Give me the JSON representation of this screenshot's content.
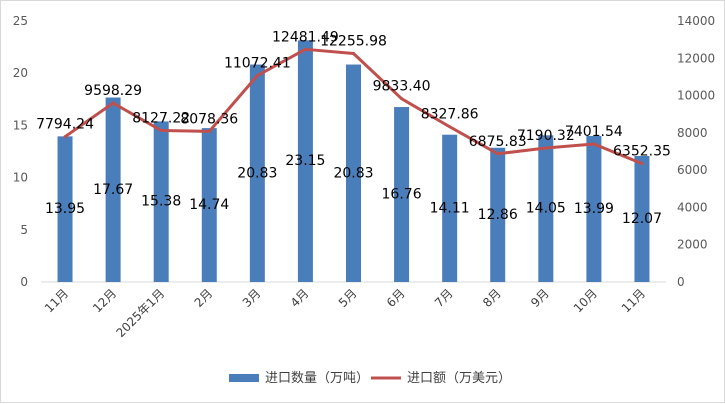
{
  "chart_data": {
    "type": "bar",
    "categories": [
      "11月",
      "12月",
      "2025年1月",
      "2月",
      "3月",
      "4月",
      "5月",
      "6月",
      "7月",
      "8月",
      "9月",
      "10月",
      "11月"
    ],
    "series": [
      {
        "name": "进口数量（万吨）",
        "type": "bar",
        "axis": "left",
        "color": "#4a7ebb",
        "values": [
          13.95,
          17.67,
          15.38,
          14.74,
          20.83,
          23.15,
          20.83,
          16.76,
          14.11,
          12.86,
          14.05,
          13.99,
          12.07
        ],
        "labels": [
          "13.95",
          "17.67",
          "15.38",
          "14.74",
          "20.83",
          "23.15",
          "20.83",
          "16.76",
          "14.11",
          "12.86",
          "14.05",
          "13.99",
          "12.07"
        ]
      },
      {
        "name": "进口额（万美元）",
        "type": "line",
        "axis": "right",
        "color": "#c0504d",
        "values": [
          7794.24,
          9598.29,
          8127.22,
          8078.36,
          11072.41,
          12481.49,
          12255.98,
          9833.4,
          8327.86,
          6875.83,
          7190.32,
          7401.54,
          6352.35
        ],
        "labels": [
          "7794.24",
          "9598.29",
          "8127.22",
          "8078.36",
          "11072.41",
          "12481.49",
          "12255.98",
          "9833.40",
          "8327.86",
          "6875.83",
          "7190.32",
          "7401.54",
          "6352.35"
        ]
      }
    ],
    "y_left": {
      "ylim": [
        0,
        25
      ],
      "ticks": [
        "0",
        "5",
        "10",
        "15",
        "20",
        "25"
      ]
    },
    "y_right": {
      "ylim": [
        0,
        14000
      ],
      "ticks": [
        "0",
        "2000",
        "4000",
        "6000",
        "8000",
        "10000",
        "12000",
        "14000"
      ]
    },
    "grid": false,
    "legend_position": "bottom"
  }
}
